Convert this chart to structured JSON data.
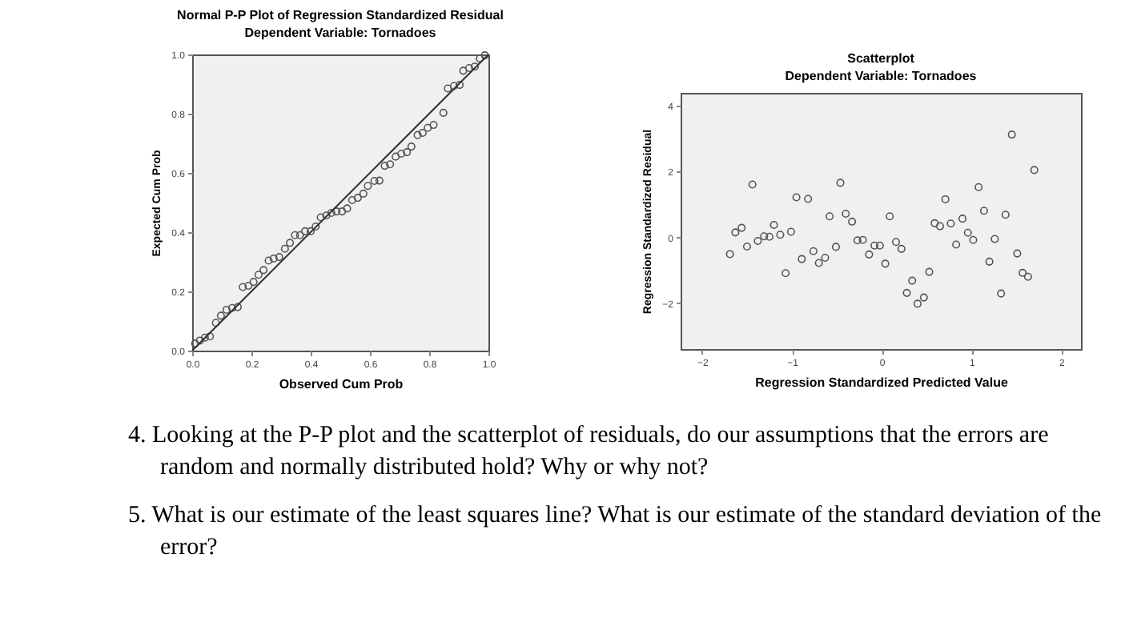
{
  "chart_data": [
    {
      "type": "scatter",
      "title": "Normal P-P Plot of Regression Standardized Residual",
      "subtitle": "Dependent Variable: Tornadoes",
      "xlabel": "Observed Cum Prob",
      "ylabel": "Expected Cum Prob",
      "xlim": [
        0,
        1
      ],
      "ylim": [
        0,
        1
      ],
      "xticks": [
        {
          "value": 0,
          "label": "0.0"
        },
        0.2,
        0.4,
        0.6,
        0.8,
        {
          "value": 1,
          "label": "1.0"
        }
      ],
      "yticks": [
        {
          "value": 0,
          "label": "0.0"
        },
        0.2,
        0.4,
        0.6,
        0.8,
        {
          "value": 1,
          "label": "1.0"
        }
      ],
      "series": [
        {
          "type": "scatter",
          "marker": "circle",
          "color": "#555555",
          "x": [
            0.01,
            0.026,
            0.043,
            0.06,
            0.08,
            0.097,
            0.116,
            0.135,
            0.154,
            0.171,
            0.19,
            0.207,
            0.224,
            0.241,
            0.258,
            0.275,
            0.294,
            0.313,
            0.33,
            0.347,
            0.364,
            0.381,
            0.4,
            0.417,
            0.434,
            0.453,
            0.47,
            0.487,
            0.506,
            0.523,
            0.54,
            0.559,
            0.578,
            0.593,
            0.615,
            0.632,
            0.65,
            0.668,
            0.687,
            0.706,
            0.725,
            0.74,
            0.761,
            0.778,
            0.795,
            0.815,
            0.848,
            0.863,
            0.884,
            0.903,
            0.915,
            0.935,
            0.954,
            0.971,
            0.988
          ],
          "values": [
            0.024,
            0.034,
            0.044,
            0.048,
            0.094,
            0.118,
            0.138,
            0.144,
            0.147,
            0.215,
            0.219,
            0.232,
            0.256,
            0.272,
            0.304,
            0.311,
            0.316,
            0.344,
            0.364,
            0.39,
            0.39,
            0.403,
            0.403,
            0.419,
            0.45,
            0.456,
            0.465,
            0.47,
            0.47,
            0.48,
            0.508,
            0.516,
            0.53,
            0.556,
            0.573,
            0.574,
            0.624,
            0.629,
            0.655,
            0.665,
            0.67,
            0.689,
            0.728,
            0.735,
            0.752,
            0.762,
            0.803,
            0.885,
            0.894,
            0.897,
            0.945,
            0.954,
            0.959,
            0.986,
            0.997
          ]
        },
        {
          "type": "line",
          "color": "#333333",
          "x": [
            0,
            1
          ],
          "values": [
            0,
            1
          ]
        }
      ]
    },
    {
      "type": "scatter",
      "title": "Scatterplot",
      "subtitle": "Dependent Variable: Tornadoes",
      "xlabel": "Regression Standardized Predicted Value",
      "ylabel": "Regression Standardized Residual",
      "marker": "circle",
      "xlim": [
        -2.24,
        2.22
      ],
      "ylim": [
        -3.4,
        4.4
      ],
      "xticks": [
        -2,
        -1,
        0,
        1,
        2
      ],
      "yticks": [
        -2,
        0,
        2,
        4
      ],
      "series": [
        {
          "type": "scatter",
          "color": "#555555",
          "x": [
            -1.44,
            -0.95,
            -0.82,
            -0.46,
            0.71,
            1.08,
            1.45,
            1.7,
            1.14,
            1.38,
            -0.58,
            -0.4,
            0.09,
            -1.69,
            -1.63,
            -1.56,
            -1.5,
            -1.38,
            -1.31,
            -1.25,
            -1.2,
            -1.13,
            -1.07,
            -1.01,
            -0.89,
            -0.76,
            -0.7,
            -0.63,
            -0.51,
            -0.33,
            -0.27,
            -0.21,
            -0.14,
            -0.08,
            -0.02,
            0.04,
            0.16,
            0.22,
            0.28,
            0.34,
            0.4,
            0.47,
            0.53,
            0.59,
            0.65,
            0.77,
            0.83,
            0.9,
            0.96,
            1.02,
            1.2,
            1.26,
            1.33,
            1.51,
            1.57,
            1.63
          ],
          "values": [
            1.61,
            1.22,
            1.17,
            1.66,
            1.16,
            1.53,
            3.13,
            2.05,
            0.81,
            0.69,
            0.64,
            0.72,
            0.64,
            -0.51,
            0.15,
            0.29,
            -0.28,
            -0.11,
            0.03,
            0.02,
            0.38,
            0.08,
            -1.09,
            0.17,
            -0.66,
            -0.42,
            -0.78,
            -0.62,
            -0.29,
            0.48,
            -0.09,
            -0.08,
            -0.52,
            -0.25,
            -0.25,
            -0.8,
            -0.14,
            -0.35,
            -1.69,
            -1.32,
            -2.02,
            -1.83,
            -1.05,
            0.43,
            0.34,
            0.42,
            -0.22,
            0.57,
            0.14,
            -0.08,
            -0.74,
            -0.05,
            -1.71,
            -0.49,
            -1.08,
            -1.2
          ]
        }
      ]
    },
    {
      "type": "other",
      "annotations": [
        "4. Looking at the P-P plot and the scatterplot of residuals, do our assumptions that the errors are random and normally distributed hold? Why or why not?",
        "5. What is our estimate of the least squares line? What is our estimate of the standard deviation of the error?"
      ]
    }
  ]
}
